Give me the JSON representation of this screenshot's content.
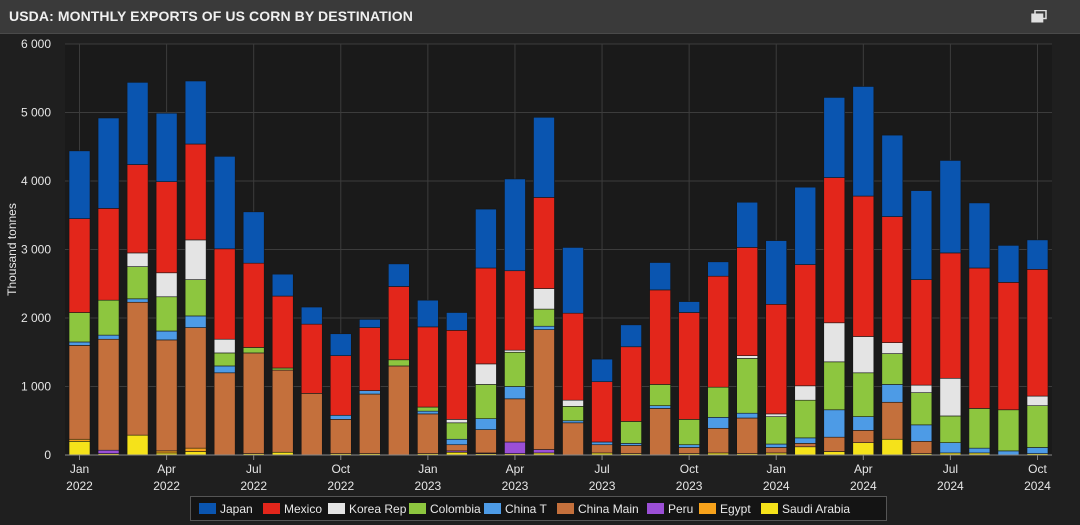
{
  "header": {
    "title": "USDA: MONTHLY EXPORTS OF US CORN BY DESTINATION",
    "expand_icon": "expand-window-icon"
  },
  "colors": {
    "Japan": "#0a55b0",
    "Mexico": "#e3261b",
    "Korea Rep": "#e4e4e4",
    "Colombia": "#8dc63f",
    "China T": "#4d9be6",
    "China Main": "#c4703c",
    "Peru": "#9b4fd6",
    "Egypt": "#f7a21b",
    "Saudi Arabia": "#f5e21a"
  },
  "chart_data": {
    "type": "bar",
    "stacked": true,
    "title": "USDA: MONTHLY EXPORTS OF US CORN BY DESTINATION",
    "xlabel": "",
    "ylabel": "Thousand tonnes",
    "ylim": [
      0,
      6000
    ],
    "yticks": [
      0,
      1000,
      2000,
      3000,
      4000,
      5000,
      6000
    ],
    "ytick_labels": [
      "0",
      "1 000",
      "2 000",
      "3 000",
      "4 000",
      "5 000",
      "6 000"
    ],
    "grid": true,
    "legend_position": "bottom",
    "categories": [
      "2022-01",
      "2022-02",
      "2022-03",
      "2022-04",
      "2022-05",
      "2022-06",
      "2022-07",
      "2022-08",
      "2022-09",
      "2022-10",
      "2022-11",
      "2022-12",
      "2023-01",
      "2023-02",
      "2023-03",
      "2023-04",
      "2023-05",
      "2023-06",
      "2023-07",
      "2023-08",
      "2023-09",
      "2023-10",
      "2023-11",
      "2023-12",
      "2024-01",
      "2024-02",
      "2024-03",
      "2024-04",
      "2024-05",
      "2024-06",
      "2024-07",
      "2024-08",
      "2024-09",
      "2024-10"
    ],
    "xtick_labels": [
      {
        "index": 0,
        "month": "Jan",
        "year": "2022"
      },
      {
        "index": 3,
        "month": "Apr",
        "year": "2022"
      },
      {
        "index": 6,
        "month": "Jul",
        "year": "2022"
      },
      {
        "index": 9,
        "month": "Oct",
        "year": "2022"
      },
      {
        "index": 12,
        "month": "Jan",
        "year": "2023"
      },
      {
        "index": 15,
        "month": "Apr",
        "year": "2023"
      },
      {
        "index": 18,
        "month": "Jul",
        "year": "2023"
      },
      {
        "index": 21,
        "month": "Oct",
        "year": "2023"
      },
      {
        "index": 24,
        "month": "Jan",
        "year": "2024"
      },
      {
        "index": 27,
        "month": "Apr",
        "year": "2024"
      },
      {
        "index": 30,
        "month": "Jul",
        "year": "2024"
      },
      {
        "index": 33,
        "month": "Oct",
        "year": "2024"
      }
    ],
    "series": [
      {
        "name": "Saudi Arabia",
        "values": [
          200,
          20,
          290,
          30,
          50,
          0,
          20,
          40,
          0,
          20,
          20,
          0,
          20,
          40,
          20,
          20,
          30,
          0,
          30,
          20,
          0,
          20,
          30,
          20,
          30,
          120,
          50,
          180,
          230,
          20,
          30,
          30,
          0,
          20
        ]
      },
      {
        "name": "Egypt",
        "values": [
          30,
          0,
          0,
          30,
          50,
          0,
          0,
          0,
          0,
          0,
          0,
          0,
          0,
          0,
          0,
          0,
          0,
          0,
          0,
          0,
          0,
          0,
          0,
          0,
          0,
          0,
          0,
          0,
          0,
          0,
          0,
          0,
          0,
          0
        ]
      },
      {
        "name": "Peru",
        "values": [
          0,
          50,
          0,
          0,
          0,
          0,
          0,
          0,
          0,
          0,
          0,
          0,
          0,
          20,
          10,
          170,
          50,
          0,
          0,
          0,
          0,
          0,
          0,
          0,
          0,
          0,
          0,
          0,
          0,
          0,
          0,
          0,
          0,
          0
        ]
      },
      {
        "name": "China Main",
        "values": [
          1370,
          1620,
          1940,
          1620,
          1760,
          1200,
          1470,
          1200,
          900,
          500,
          870,
          1300,
          580,
          90,
          340,
          630,
          1750,
          470,
          120,
          120,
          680,
          90,
          360,
          520,
          80,
          50,
          210,
          180,
          540,
          180,
          0,
          0,
          0,
          0
        ]
      },
      {
        "name": "China T",
        "values": [
          50,
          60,
          50,
          130,
          170,
          100,
          0,
          0,
          0,
          60,
          50,
          0,
          40,
          80,
          160,
          180,
          50,
          30,
          40,
          30,
          40,
          40,
          160,
          70,
          50,
          80,
          400,
          200,
          260,
          240,
          150,
          70,
          60,
          90
        ]
      },
      {
        "name": "Colombia",
        "values": [
          430,
          510,
          470,
          500,
          530,
          190,
          80,
          30,
          0,
          0,
          0,
          90,
          60,
          240,
          500,
          500,
          250,
          210,
          0,
          320,
          310,
          370,
          440,
          800,
          400,
          550,
          700,
          640,
          450,
          470,
          390,
          580,
          600,
          610
        ]
      },
      {
        "name": "Korea Rep",
        "values": [
          0,
          0,
          200,
          350,
          580,
          200,
          0,
          0,
          0,
          0,
          0,
          0,
          0,
          50,
          300,
          30,
          300,
          90,
          0,
          0,
          0,
          0,
          0,
          40,
          40,
          210,
          570,
          530,
          160,
          110,
          550,
          0,
          0,
          140
        ]
      },
      {
        "name": "Mexico",
        "values": [
          1370,
          1340,
          1290,
          1330,
          1400,
          1320,
          1230,
          1050,
          1010,
          870,
          920,
          1070,
          1170,
          1300,
          1400,
          1160,
          1330,
          1270,
          880,
          1090,
          1380,
          1560,
          1620,
          1580,
          1600,
          1770,
          2120,
          2050,
          1840,
          1540,
          1830,
          2050,
          1860,
          1850
        ]
      },
      {
        "name": "Japan",
        "values": [
          990,
          1320,
          1200,
          1000,
          920,
          1350,
          750,
          320,
          250,
          320,
          120,
          330,
          390,
          260,
          860,
          1340,
          1170,
          960,
          330,
          320,
          400,
          160,
          210,
          660,
          930,
          1130,
          1170,
          1600,
          1190,
          1300,
          1350,
          950,
          540,
          430
        ]
      }
    ],
    "legend_order": [
      "Japan",
      "Mexico",
      "Korea Rep",
      "Colombia",
      "China T",
      "China Main",
      "Peru",
      "Egypt",
      "Saudi Arabia"
    ]
  }
}
